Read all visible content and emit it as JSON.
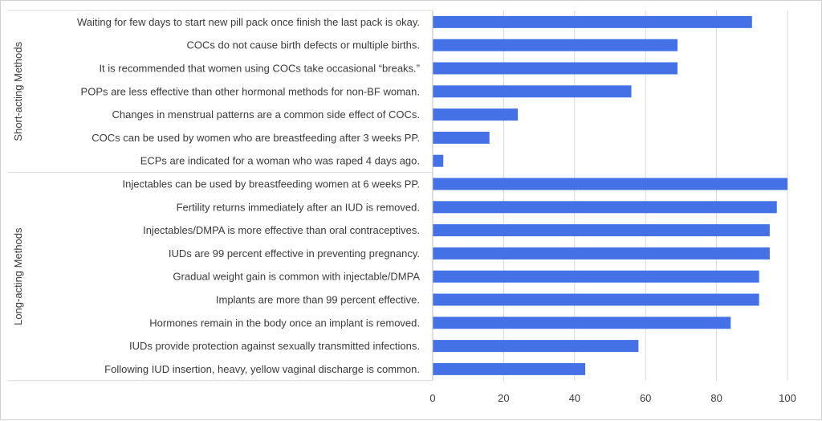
{
  "chart_data": {
    "type": "bar",
    "orientation": "horizontal",
    "title": "",
    "xlabel": "",
    "ylabel": "",
    "xlim": [
      0,
      100
    ],
    "x_ticks": [
      0,
      20,
      40,
      60,
      80,
      100
    ],
    "grid": "vertical",
    "legend": "none",
    "bar_color": "#4472e6",
    "groups": [
      {
        "name": "Short-acting Methods",
        "categories": [
          "Waiting for few days to start new pill pack once finish the last pack is okay.",
          "COCs do not cause birth defects or multiple births.",
          "It is recommended that women using COCs take occasional “breaks.”",
          "POPs are less effective than other hormonal methods for non-BF woman.",
          "Changes in menstrual patterns are a common side effect of COCs.",
          "COCs can be used by women who are breastfeeding after 3 weeks PP.",
          "ECPs are indicated for a woman who was raped 4 days ago."
        ],
        "values": [
          90,
          69,
          69,
          56,
          24,
          16,
          3
        ]
      },
      {
        "name": "Long-acting Methods",
        "categories": [
          "Injectables can be used by breastfeeding women at 6 weeks PP.",
          "Fertility returns immediately after an IUD is removed.",
          "Injectables/DMPA is more effective than oral contraceptives.",
          "IUDs are 99 percent effective in preventing pregnancy.",
          "Gradual weight gain is common with injectable/DMPA",
          "Implants are more than 99 percent effective.",
          "Hormones remain in the body once an implant is removed.",
          "IUDs provide protection against sexually transmitted infections.",
          "Following IUD insertion, heavy, yellow vaginal discharge is common."
        ],
        "values": [
          100,
          97,
          95,
          95,
          92,
          92,
          84,
          58,
          43
        ]
      }
    ]
  }
}
